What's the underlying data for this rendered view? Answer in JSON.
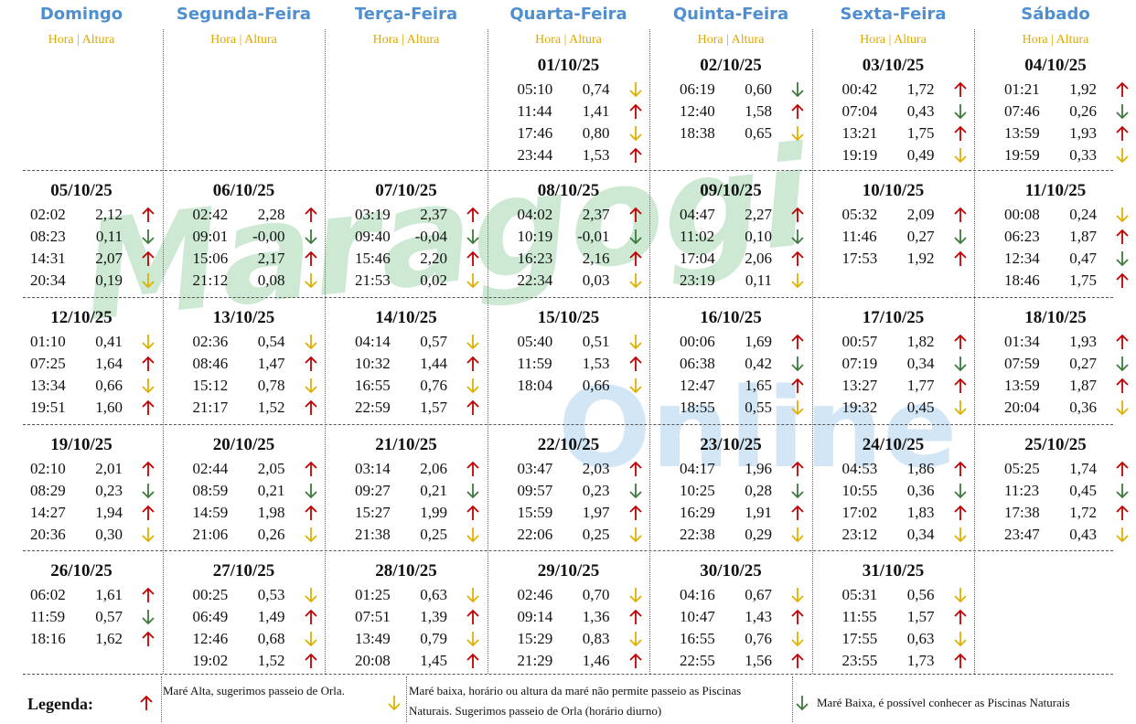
{
  "header": {
    "days": [
      "Domingo",
      "Segunda-Feira",
      "Terça-Feira",
      "Quarta-Feira",
      "Quinta-Feira",
      "Sexta-Feira",
      "Sábado"
    ],
    "col_label": "Hora | Altura"
  },
  "watermark": [
    "Maragogi",
    "Online"
  ],
  "arrow_colors": {
    "alta": "#c00000",
    "baixa": "#e0b000",
    "piscina": "#3d7a3d"
  },
  "weeks": [
    [
      null,
      null,
      null,
      {
        "date": "01/10/25",
        "tides": [
          [
            "05:10",
            "0,74",
            "baixa"
          ],
          [
            "11:44",
            "1,41",
            "alta"
          ],
          [
            "17:46",
            "0,80",
            "baixa"
          ],
          [
            "23:44",
            "1,53",
            "alta"
          ]
        ]
      },
      {
        "date": "02/10/25",
        "tides": [
          [
            "06:19",
            "0,60",
            "piscina"
          ],
          [
            "12:40",
            "1,58",
            "alta"
          ],
          [
            "18:38",
            "0,65",
            "baixa"
          ]
        ]
      },
      {
        "date": "03/10/25",
        "tides": [
          [
            "00:42",
            "1,72",
            "alta"
          ],
          [
            "07:04",
            "0,43",
            "piscina"
          ],
          [
            "13:21",
            "1,75",
            "alta"
          ],
          [
            "19:19",
            "0,49",
            "baixa"
          ]
        ]
      },
      {
        "date": "04/10/25",
        "tides": [
          [
            "01:21",
            "1,92",
            "alta"
          ],
          [
            "07:46",
            "0,26",
            "piscina"
          ],
          [
            "13:59",
            "1,93",
            "alta"
          ],
          [
            "19:59",
            "0,33",
            "baixa"
          ]
        ]
      }
    ],
    [
      {
        "date": "05/10/25",
        "tides": [
          [
            "02:02",
            "2,12",
            "alta"
          ],
          [
            "08:23",
            "0,11",
            "piscina"
          ],
          [
            "14:31",
            "2,07",
            "alta"
          ],
          [
            "20:34",
            "0,19",
            "baixa"
          ]
        ]
      },
      {
        "date": "06/10/25",
        "tides": [
          [
            "02:42",
            "2,28",
            "alta"
          ],
          [
            "09:01",
            "-0,00",
            "piscina"
          ],
          [
            "15:06",
            "2,17",
            "alta"
          ],
          [
            "21:12",
            "0,08",
            "baixa"
          ]
        ]
      },
      {
        "date": "07/10/25",
        "tides": [
          [
            "03:19",
            "2,37",
            "alta"
          ],
          [
            "09:40",
            "-0,04",
            "piscina"
          ],
          [
            "15:46",
            "2,20",
            "alta"
          ],
          [
            "21:53",
            "0,02",
            "baixa"
          ]
        ]
      },
      {
        "date": "08/10/25",
        "tides": [
          [
            "04:02",
            "2,37",
            "alta"
          ],
          [
            "10:19",
            "-0,01",
            "piscina"
          ],
          [
            "16:23",
            "2,16",
            "alta"
          ],
          [
            "22:34",
            "0,03",
            "baixa"
          ]
        ]
      },
      {
        "date": "09/10/25",
        "tides": [
          [
            "04:47",
            "2,27",
            "alta"
          ],
          [
            "11:02",
            "0,10",
            "piscina"
          ],
          [
            "17:04",
            "2,06",
            "alta"
          ],
          [
            "23:19",
            "0,11",
            "baixa"
          ]
        ]
      },
      {
        "date": "10/10/25",
        "tides": [
          [
            "05:32",
            "2,09",
            "alta"
          ],
          [
            "11:46",
            "0,27",
            "piscina"
          ],
          [
            "17:53",
            "1,92",
            "alta"
          ]
        ]
      },
      {
        "date": "11/10/25",
        "tides": [
          [
            "00:08",
            "0,24",
            "baixa"
          ],
          [
            "06:23",
            "1,87",
            "alta"
          ],
          [
            "12:34",
            "0,47",
            "piscina"
          ],
          [
            "18:46",
            "1,75",
            "alta"
          ]
        ]
      }
    ],
    [
      {
        "date": "12/10/25",
        "tides": [
          [
            "01:10",
            "0,41",
            "baixa"
          ],
          [
            "07:25",
            "1,64",
            "alta"
          ],
          [
            "13:34",
            "0,66",
            "baixa"
          ],
          [
            "19:51",
            "1,60",
            "alta"
          ]
        ]
      },
      {
        "date": "13/10/25",
        "tides": [
          [
            "02:36",
            "0,54",
            "baixa"
          ],
          [
            "08:46",
            "1,47",
            "alta"
          ],
          [
            "15:12",
            "0,78",
            "baixa"
          ],
          [
            "21:17",
            "1,52",
            "alta"
          ]
        ]
      },
      {
        "date": "14/10/25",
        "tides": [
          [
            "04:14",
            "0,57",
            "baixa"
          ],
          [
            "10:32",
            "1,44",
            "alta"
          ],
          [
            "16:55",
            "0,76",
            "baixa"
          ],
          [
            "22:59",
            "1,57",
            "alta"
          ]
        ]
      },
      {
        "date": "15/10/25",
        "tides": [
          [
            "05:40",
            "0,51",
            "baixa"
          ],
          [
            "11:59",
            "1,53",
            "alta"
          ],
          [
            "18:04",
            "0,66",
            "baixa"
          ]
        ]
      },
      {
        "date": "16/10/25",
        "tides": [
          [
            "00:06",
            "1,69",
            "alta"
          ],
          [
            "06:38",
            "0,42",
            "piscina"
          ],
          [
            "12:47",
            "1,65",
            "alta"
          ],
          [
            "18:55",
            "0,55",
            "baixa"
          ]
        ]
      },
      {
        "date": "17/10/25",
        "tides": [
          [
            "00:57",
            "1,82",
            "alta"
          ],
          [
            "07:19",
            "0,34",
            "piscina"
          ],
          [
            "13:27",
            "1,77",
            "alta"
          ],
          [
            "19:32",
            "0,45",
            "baixa"
          ]
        ]
      },
      {
        "date": "18/10/25",
        "tides": [
          [
            "01:34",
            "1,93",
            "alta"
          ],
          [
            "07:59",
            "0,27",
            "piscina"
          ],
          [
            "13:59",
            "1,87",
            "alta"
          ],
          [
            "20:04",
            "0,36",
            "baixa"
          ]
        ]
      }
    ],
    [
      {
        "date": "19/10/25",
        "tides": [
          [
            "02:10",
            "2,01",
            "alta"
          ],
          [
            "08:29",
            "0,23",
            "piscina"
          ],
          [
            "14:27",
            "1,94",
            "alta"
          ],
          [
            "20:36",
            "0,30",
            "baixa"
          ]
        ]
      },
      {
        "date": "20/10/25",
        "tides": [
          [
            "02:44",
            "2,05",
            "alta"
          ],
          [
            "08:59",
            "0,21",
            "piscina"
          ],
          [
            "14:59",
            "1,98",
            "alta"
          ],
          [
            "21:06",
            "0,26",
            "baixa"
          ]
        ]
      },
      {
        "date": "21/10/25",
        "tides": [
          [
            "03:14",
            "2,06",
            "alta"
          ],
          [
            "09:27",
            "0,21",
            "piscina"
          ],
          [
            "15:27",
            "1,99",
            "alta"
          ],
          [
            "21:38",
            "0,25",
            "baixa"
          ]
        ]
      },
      {
        "date": "22/10/25",
        "tides": [
          [
            "03:47",
            "2,03",
            "alta"
          ],
          [
            "09:57",
            "0,23",
            "piscina"
          ],
          [
            "15:59",
            "1,97",
            "alta"
          ],
          [
            "22:06",
            "0,25",
            "baixa"
          ]
        ]
      },
      {
        "date": "23/10/25",
        "tides": [
          [
            "04:17",
            "1,96",
            "alta"
          ],
          [
            "10:25",
            "0,28",
            "piscina"
          ],
          [
            "16:29",
            "1,91",
            "alta"
          ],
          [
            "22:38",
            "0,29",
            "baixa"
          ]
        ]
      },
      {
        "date": "24/10/25",
        "tides": [
          [
            "04:53",
            "1,86",
            "alta"
          ],
          [
            "10:55",
            "0,36",
            "piscina"
          ],
          [
            "17:02",
            "1,83",
            "alta"
          ],
          [
            "23:12",
            "0,34",
            "baixa"
          ]
        ]
      },
      {
        "date": "25/10/25",
        "tides": [
          [
            "05:25",
            "1,74",
            "alta"
          ],
          [
            "11:23",
            "0,45",
            "piscina"
          ],
          [
            "17:38",
            "1,72",
            "alta"
          ],
          [
            "23:47",
            "0,43",
            "baixa"
          ]
        ]
      }
    ],
    [
      {
        "date": "26/10/25",
        "tides": [
          [
            "06:02",
            "1,61",
            "alta"
          ],
          [
            "11:59",
            "0,57",
            "piscina"
          ],
          [
            "18:16",
            "1,62",
            "alta"
          ]
        ]
      },
      {
        "date": "27/10/25",
        "tides": [
          [
            "00:25",
            "0,53",
            "baixa"
          ],
          [
            "06:49",
            "1,49",
            "alta"
          ],
          [
            "12:46",
            "0,68",
            "baixa"
          ],
          [
            "19:02",
            "1,52",
            "alta"
          ]
        ]
      },
      {
        "date": "28/10/25",
        "tides": [
          [
            "01:25",
            "0,63",
            "baixa"
          ],
          [
            "07:51",
            "1,39",
            "alta"
          ],
          [
            "13:49",
            "0,79",
            "baixa"
          ],
          [
            "20:08",
            "1,45",
            "alta"
          ]
        ]
      },
      {
        "date": "29/10/25",
        "tides": [
          [
            "02:46",
            "0,70",
            "baixa"
          ],
          [
            "09:14",
            "1,36",
            "alta"
          ],
          [
            "15:29",
            "0,83",
            "baixa"
          ],
          [
            "21:29",
            "1,46",
            "alta"
          ]
        ]
      },
      {
        "date": "30/10/25",
        "tides": [
          [
            "04:16",
            "0,67",
            "baixa"
          ],
          [
            "10:47",
            "1,43",
            "alta"
          ],
          [
            "16:55",
            "0,76",
            "baixa"
          ],
          [
            "22:55",
            "1,56",
            "alta"
          ]
        ]
      },
      {
        "date": "31/10/25",
        "tides": [
          [
            "05:31",
            "0,56",
            "baixa"
          ],
          [
            "11:55",
            "1,57",
            "alta"
          ],
          [
            "17:55",
            "0,63",
            "baixa"
          ],
          [
            "23:55",
            "1,73",
            "alta"
          ]
        ]
      },
      null
    ]
  ],
  "legend": {
    "title": "Legenda:",
    "items": [
      {
        "type": "alta",
        "text": "Maré Alta, sugerimos passeio de Orla."
      },
      {
        "type": "baixa",
        "text": "Maré baixa, horário ou altura da maré não permite passeio as Piscinas Naturais. Sugerimos passeio de Orla (horário diurno)"
      },
      {
        "type": "piscina",
        "text": "Maré Baixa, é possível conhecer as Piscinas Naturais"
      }
    ]
  }
}
